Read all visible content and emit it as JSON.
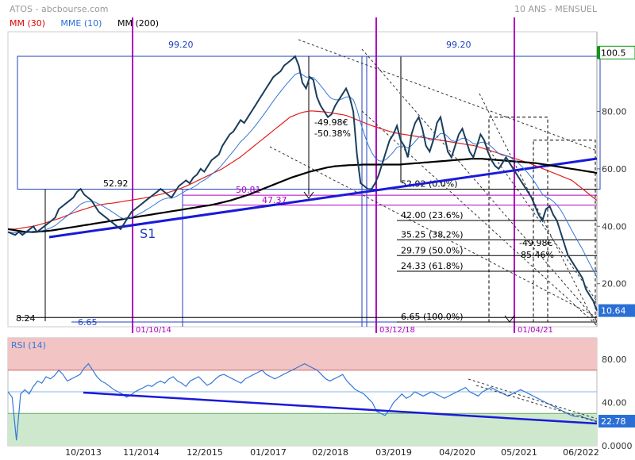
{
  "header": {
    "title": "ATOS - abcbourse.com",
    "period": "10 ANS - MENSUEL"
  },
  "legend": [
    {
      "label": "MM (30)",
      "color": "#e00000"
    },
    {
      "label": "MME (10)",
      "color": "#2a6fd6"
    },
    {
      "label": "MM (200)",
      "color": "#000000"
    }
  ],
  "colors": {
    "price": "#1a3e5c",
    "mm30": "#e02020",
    "mme10": "#3478d8",
    "mm200": "#000000",
    "trend": "#1a1ad8",
    "magenta": "#b000c0",
    "box": "#2040c0",
    "rsi": "#3478d8",
    "overbought": "#f2c4c4",
    "oversold": "#cde8cd",
    "current_tag": "#2a6fd6",
    "max_tag": "#119911"
  },
  "chart_data": [
    {
      "type": "line",
      "name": "price-panel",
      "x_tick_labels": [
        "10/2013",
        "11/2014",
        "12/2015",
        "01/2017",
        "02/2018",
        "03/2019",
        "04/2020",
        "05/2021",
        "06/2022"
      ],
      "y_ticks": [
        20.0,
        40.0,
        60.0,
        80.0
      ],
      "y_tick_labels": [
        "20.00",
        "40.00",
        "60.00",
        "80.00"
      ],
      "ylim": [
        5,
        105
      ],
      "last_value": "10.64",
      "max_value": "100.5",
      "price": [
        38,
        37.5,
        37,
        38,
        37,
        38,
        39,
        40,
        38,
        39,
        40,
        41,
        42,
        43,
        46,
        47,
        48,
        49,
        50,
        52,
        53,
        51,
        50,
        49,
        47,
        45,
        44,
        43,
        42,
        41,
        40,
        39,
        41,
        43,
        45,
        46,
        47,
        48,
        49,
        50,
        51,
        52,
        53,
        52,
        51,
        50,
        52,
        54,
        55,
        56,
        55,
        57,
        58,
        60,
        59,
        61,
        63,
        64,
        65,
        68,
        70,
        72,
        73,
        75,
        77,
        76,
        78,
        80,
        82,
        84,
        86,
        88,
        90,
        92,
        93,
        94,
        96,
        97,
        98,
        99.2,
        96,
        90,
        88,
        92,
        91,
        85,
        82,
        80,
        78,
        79,
        82,
        84,
        86,
        88,
        85,
        80,
        65,
        55,
        54,
        53,
        52.92,
        55,
        58,
        62,
        66,
        70,
        72,
        75,
        70,
        68,
        64,
        72,
        76,
        78,
        74,
        68,
        66,
        70,
        76,
        78,
        72,
        66,
        64,
        68,
        72,
        74,
        70,
        66,
        64,
        68,
        72,
        70,
        66,
        63,
        61,
        60,
        62,
        64,
        62,
        60,
        58,
        56,
        54,
        52,
        50,
        47,
        44,
        42,
        46,
        47,
        44,
        42,
        38,
        34,
        30,
        28,
        26,
        24,
        22,
        18,
        16,
        14,
        10.64
      ],
      "mm30": [
        39,
        39,
        39,
        39.2,
        39.4,
        39.6,
        39.8,
        40,
        40.3,
        40.6,
        41,
        41.4,
        41.8,
        42.2,
        42.6,
        43,
        43.5,
        44,
        44.5,
        45,
        45.4,
        45.8,
        46.2,
        46.6,
        47,
        47.3,
        47.5,
        47.7,
        47.9,
        48,
        48.2,
        48.4,
        48.6,
        48.8,
        49,
        49.2,
        49.4,
        49.6,
        49.8,
        50,
        50.3,
        50.6,
        50.9,
        51.2,
        51.5,
        51.8,
        52.2,
        52.6,
        53,
        53.5,
        54,
        54.6,
        55.2,
        55.8,
        56.4,
        57,
        57.6,
        58.2,
        58.8,
        59.4,
        60,
        60.8,
        61.6,
        62.4,
        63.2,
        64,
        65,
        66,
        67,
        68,
        69,
        70,
        71,
        72,
        73,
        74,
        75,
        76,
        77,
        78,
        78.5,
        79,
        79.5,
        79.8,
        80,
        80.2,
        80.1,
        80,
        79.9,
        79.8,
        79.6,
        79.4,
        79.2,
        79,
        78.8,
        78.5,
        78,
        77.5,
        77,
        76.5,
        76,
        75.5,
        75,
        74.6,
        74.2,
        73.8,
        73.4,
        73,
        72.7,
        72.4,
        72.2,
        72,
        71.8,
        71.6,
        71.4,
        71.2,
        71,
        70.8,
        70.6,
        70.4,
        70.2,
        70,
        69.8,
        69.6,
        69.4,
        69.2,
        69,
        68.8,
        68.6,
        68.4,
        68.2,
        68,
        67.6,
        67.2,
        66.8,
        66.4,
        66,
        65.6,
        65.2,
        64.8,
        64.4,
        64,
        63.6,
        63.2,
        62.8,
        62.4,
        62,
        61.5,
        61,
        60.5,
        60,
        59.5,
        59,
        58.5,
        58,
        57.5,
        57,
        56.5,
        56,
        55,
        54,
        53,
        52,
        51,
        50,
        49
      ],
      "mm200": [
        39,
        38.8,
        38.6,
        38.4,
        38.2,
        38,
        38,
        38,
        38.1,
        38.2,
        38.3,
        38.4,
        38.5,
        38.7,
        38.9,
        39.1,
        39.3,
        39.5,
        39.7,
        39.9,
        40.1,
        40.3,
        40.5,
        40.7,
        40.9,
        41.1,
        41.3,
        41.5,
        41.7,
        41.9,
        42.1,
        42.3,
        42.5,
        42.7,
        42.9,
        43.1,
        43.3,
        43.5,
        43.7,
        43.9,
        44.1,
        44.3,
        44.5,
        44.7,
        44.9,
        45.1,
        45.3,
        45.5,
        45.7,
        45.9,
        46.1,
        46.3,
        46.5,
        46.7,
        46.9,
        47.1,
        47.3,
        47.5,
        47.8,
        48.1,
        48.4,
        48.7,
        49,
        49.4,
        49.8,
        50.2,
        50.6,
        51,
        51.5,
        52,
        52.5,
        53,
        53.5,
        54,
        54.5,
        55,
        55.5,
        56,
        56.5,
        57,
        57.4,
        57.8,
        58.2,
        58.6,
        59,
        59.3,
        59.6,
        59.9,
        60.2,
        60.5,
        60.7,
        60.9,
        61,
        61.1,
        61.2,
        61.3,
        61.3,
        61.4,
        61.4,
        61.5,
        61.5,
        61.5,
        61.5,
        61.5,
        61.5,
        61.5,
        61.5,
        61.5,
        61.5,
        61.5,
        61.6,
        61.7,
        61.8,
        61.9,
        62,
        62.1,
        62.2,
        62.3,
        62.4,
        62.5,
        62.6,
        62.7,
        62.8,
        62.9,
        63,
        63.1,
        63.2,
        63.3,
        63.4,
        63.5,
        63.5,
        63.5,
        63.5,
        63.4,
        63.3,
        63.2,
        63.1,
        63,
        62.9,
        62.8,
        62.7,
        62.6,
        62.5,
        62.4,
        62.3,
        62.2,
        62.1,
        62,
        61.8,
        61.6,
        61.4,
        61.2,
        61,
        60.8,
        60.6,
        60.4,
        60.2,
        60,
        59.8,
        59.6,
        59.4,
        59.2,
        59,
        58.8,
        58.5
      ],
      "annotations": [
        {
          "label": "99.20",
          "value": 99.2
        },
        {
          "label": "99.20",
          "value": 99.2
        },
        {
          "label": "52.92",
          "value": 52.92
        },
        {
          "label": "8.24",
          "value": 8.24
        },
        {
          "label": "6.65",
          "value": 6.65
        },
        {
          "label": "50.81",
          "value": 50.81
        },
        {
          "label": "47.37",
          "value": 47.37
        },
        {
          "label": "-49.98€",
          "value": 72
        },
        {
          "label": "-50.38%",
          "value": 68
        },
        {
          "label": "-49.98€",
          "value": 31
        },
        {
          "label": "-85.46%",
          "value": 27
        },
        {
          "label": "S1",
          "value": 32
        }
      ],
      "fibonacci": [
        {
          "label": "52.92  (0.0%)",
          "value": 52.92
        },
        {
          "label": "42.00  (23.6%)",
          "value": 42.0
        },
        {
          "label": "35.25  (38.2%)",
          "value": 35.25
        },
        {
          "label": "29.79  (50.0%)",
          "value": 29.79
        },
        {
          "label": "24.33  (61.8%)",
          "value": 24.33
        },
        {
          "label": "6.65  (100.0%)",
          "value": 6.65
        }
      ],
      "date_markers": [
        "01/10/14",
        "03/12/18",
        "01/04/21"
      ]
    },
    {
      "type": "line",
      "name": "rsi-panel",
      "title": "RSI (14)",
      "y_ticks": [
        0,
        40,
        80
      ],
      "y_tick_labels": [
        "0.0000",
        "40.00",
        "80.00"
      ],
      "ylim": [
        0,
        100
      ],
      "overbought": 70,
      "oversold": 30,
      "last_value": "22.78",
      "values": [
        50,
        45,
        5,
        48,
        52,
        48,
        55,
        60,
        58,
        64,
        62,
        65,
        70,
        66,
        60,
        62,
        64,
        66,
        72,
        76,
        70,
        64,
        60,
        58,
        55,
        52,
        50,
        48,
        45,
        47,
        50,
        52,
        54,
        56,
        55,
        58,
        60,
        58,
        62,
        64,
        60,
        58,
        55,
        60,
        62,
        64,
        60,
        56,
        58,
        62,
        65,
        66,
        64,
        62,
        60,
        58,
        62,
        64,
        66,
        68,
        70,
        66,
        64,
        62,
        64,
        66,
        68,
        70,
        72,
        74,
        76,
        74,
        72,
        70,
        66,
        62,
        60,
        62,
        64,
        66,
        60,
        56,
        52,
        50,
        48,
        44,
        40,
        32,
        30,
        28,
        33,
        40,
        44,
        48,
        44,
        46,
        50,
        48,
        46,
        48,
        50,
        48,
        46,
        44,
        46,
        48,
        50,
        52,
        54,
        50,
        48,
        46,
        50,
        52,
        54,
        52,
        50,
        48,
        46,
        48,
        50,
        52,
        50,
        48,
        46,
        44,
        42,
        40,
        38,
        36,
        34,
        32,
        30,
        28,
        27,
        28,
        26,
        25,
        24,
        22.78
      ]
    }
  ]
}
